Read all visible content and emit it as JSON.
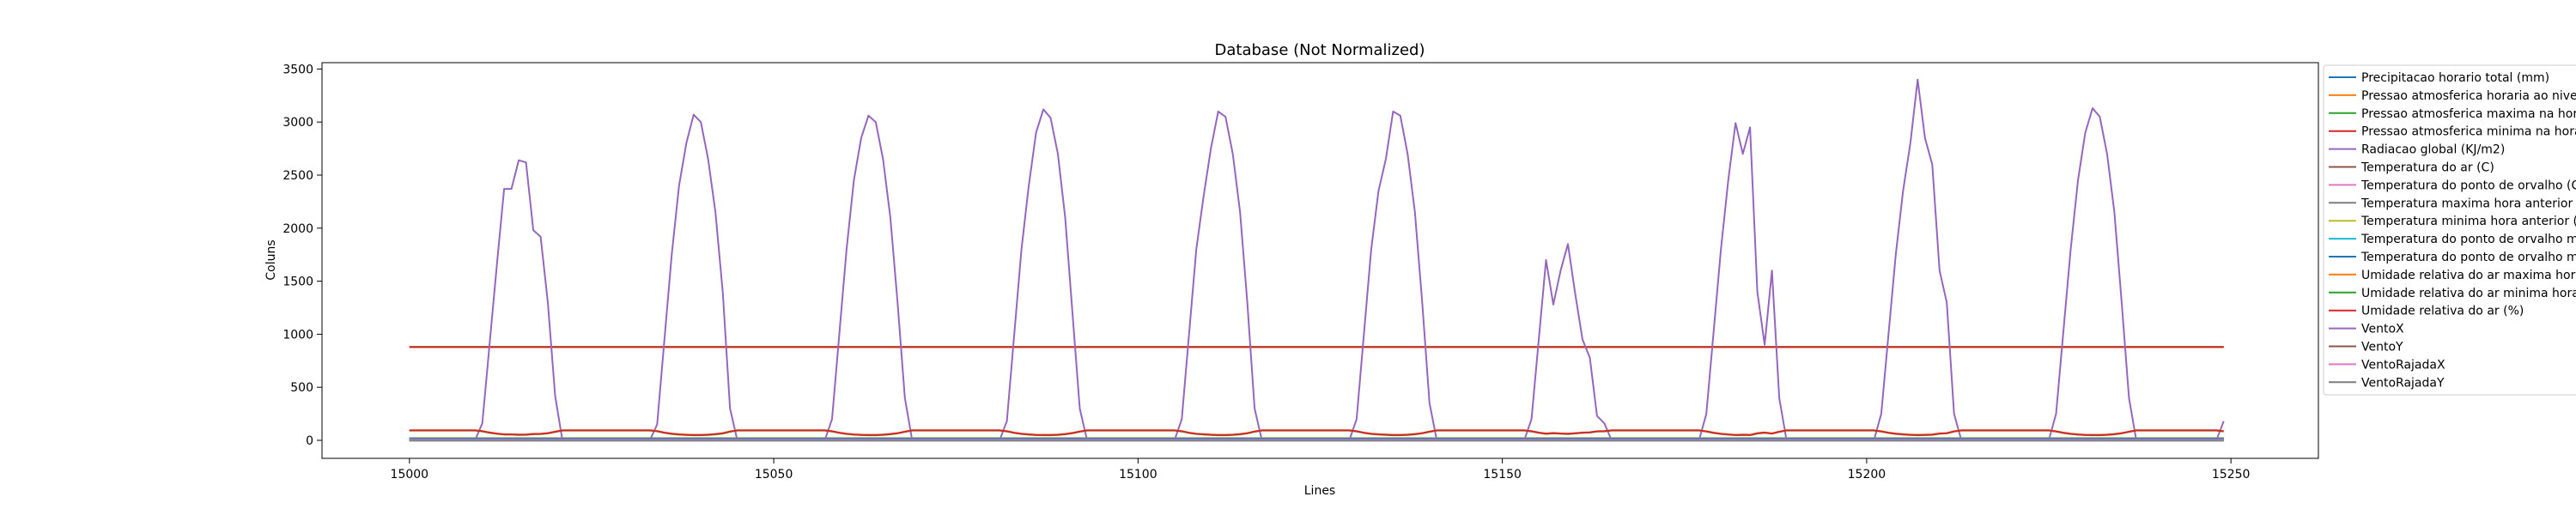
{
  "chart_data": {
    "type": "line",
    "title": "Database (Not Normalized)",
    "xlabel": "Lines",
    "ylabel": "Coluns",
    "xlim": [
      14988,
      15262
    ],
    "ylim": [
      -170,
      3560
    ],
    "xticks": [
      15000,
      15050,
      15100,
      15150,
      15200,
      15250
    ],
    "yticks": [
      0,
      500,
      1000,
      1500,
      2000,
      2500,
      3000,
      3500
    ],
    "grid": false,
    "legend_position": "right, outside plot",
    "x_start": 15000,
    "x_end": 15249,
    "series": [
      {
        "name": "Precipitacao horario total (mm)",
        "color": "#1f77b4",
        "kind": "const",
        "value": 0
      },
      {
        "name": "Pressao atmosferica horaria ao nivel da estacao (mB)",
        "color": "#ff7f0e",
        "kind": "const",
        "value": 880
      },
      {
        "name": "Pressao atmosferica maxima na hora anterior (mB)",
        "color": "#2ca02c",
        "kind": "const",
        "value": 881
      },
      {
        "name": "Pressao atmosferica minima na hora anterior (mB)",
        "color": "#d62728",
        "kind": "const",
        "value": 879
      },
      {
        "name": "Radiacao global (KJ/m2)",
        "color": "#9467bd",
        "kind": "points",
        "points": [
          [
            15000,
            0
          ],
          [
            15009,
            0
          ],
          [
            15010,
            160
          ],
          [
            15012,
            1650
          ],
          [
            15013,
            2370
          ],
          [
            15014,
            2370
          ],
          [
            15015,
            2640
          ],
          [
            15016,
            2620
          ],
          [
            15017,
            1980
          ],
          [
            15018,
            1920
          ],
          [
            15019,
            1300
          ],
          [
            15020,
            420
          ],
          [
            15021,
            0
          ],
          [
            15033,
            0
          ],
          [
            15034,
            150
          ],
          [
            15036,
            1750
          ],
          [
            15037,
            2400
          ],
          [
            15038,
            2800
          ],
          [
            15039,
            3070
          ],
          [
            15040,
            3000
          ],
          [
            15041,
            2650
          ],
          [
            15042,
            2150
          ],
          [
            15043,
            1400
          ],
          [
            15044,
            300
          ],
          [
            15045,
            0
          ],
          [
            15057,
            0
          ],
          [
            15058,
            200
          ],
          [
            15060,
            1800
          ],
          [
            15061,
            2450
          ],
          [
            15062,
            2850
          ],
          [
            15063,
            3060
          ],
          [
            15064,
            3000
          ],
          [
            15065,
            2650
          ],
          [
            15066,
            2100
          ],
          [
            15067,
            1300
          ],
          [
            15068,
            400
          ],
          [
            15069,
            0
          ],
          [
            15081,
            0
          ],
          [
            15082,
            180
          ],
          [
            15084,
            1800
          ],
          [
            15085,
            2400
          ],
          [
            15086,
            2900
          ],
          [
            15087,
            3120
          ],
          [
            15088,
            3040
          ],
          [
            15089,
            2700
          ],
          [
            15090,
            2100
          ],
          [
            15091,
            1200
          ],
          [
            15092,
            300
          ],
          [
            15093,
            0
          ],
          [
            15105,
            0
          ],
          [
            15106,
            200
          ],
          [
            15108,
            1800
          ],
          [
            15109,
            2300
          ],
          [
            15110,
            2750
          ],
          [
            15111,
            3100
          ],
          [
            15112,
            3050
          ],
          [
            15113,
            2700
          ],
          [
            15114,
            2150
          ],
          [
            15115,
            1300
          ],
          [
            15116,
            300
          ],
          [
            15117,
            0
          ],
          [
            15129,
            0
          ],
          [
            15130,
            200
          ],
          [
            15132,
            1800
          ],
          [
            15133,
            2350
          ],
          [
            15134,
            2650
          ],
          [
            15135,
            3100
          ],
          [
            15136,
            3060
          ],
          [
            15137,
            2700
          ],
          [
            15138,
            2150
          ],
          [
            15139,
            1300
          ],
          [
            15140,
            350
          ],
          [
            15141,
            0
          ],
          [
            15153,
            0
          ],
          [
            15154,
            200
          ],
          [
            15156,
            1700
          ],
          [
            15157,
            1280
          ],
          [
            15158,
            1600
          ],
          [
            15159,
            1850
          ],
          [
            15160,
            1380
          ],
          [
            15161,
            950
          ],
          [
            15162,
            780
          ],
          [
            15163,
            230
          ],
          [
            15164,
            160
          ],
          [
            15165,
            0
          ],
          [
            15177,
            0
          ],
          [
            15178,
            250
          ],
          [
            15180,
            1800
          ],
          [
            15181,
            2450
          ],
          [
            15182,
            2990
          ],
          [
            15183,
            2700
          ],
          [
            15184,
            2950
          ],
          [
            15185,
            1400
          ],
          [
            15186,
            900
          ],
          [
            15187,
            1600
          ],
          [
            15188,
            400
          ],
          [
            15189,
            0
          ],
          [
            15201,
            0
          ],
          [
            15202,
            250
          ],
          [
            15204,
            1750
          ],
          [
            15205,
            2350
          ],
          [
            15206,
            2800
          ],
          [
            15207,
            3400
          ],
          [
            15208,
            2850
          ],
          [
            15209,
            2600
          ],
          [
            15210,
            1600
          ],
          [
            15211,
            1300
          ],
          [
            15212,
            250
          ],
          [
            15213,
            0
          ],
          [
            15225,
            0
          ],
          [
            15226,
            250
          ],
          [
            15228,
            1800
          ],
          [
            15229,
            2450
          ],
          [
            15230,
            2900
          ],
          [
            15231,
            3130
          ],
          [
            15232,
            3050
          ],
          [
            15233,
            2700
          ],
          [
            15234,
            2150
          ],
          [
            15235,
            1300
          ],
          [
            15236,
            400
          ],
          [
            15237,
            0
          ],
          [
            15248,
            0
          ],
          [
            15249,
            180
          ]
        ]
      },
      {
        "name": "Temperatura do ar (C)",
        "color": "#8c564b",
        "kind": "const",
        "value": 20
      },
      {
        "name": "Temperatura do ponto de orvalho (C)",
        "color": "#e377c2",
        "kind": "const",
        "value": 15
      },
      {
        "name": "Temperatura maxima hora anterior (C)",
        "color": "#7f7f7f",
        "kind": "const",
        "value": 21
      },
      {
        "name": "Temperatura minima hora anterior (C)",
        "color": "#bcbd22",
        "kind": "const",
        "value": 19
      },
      {
        "name": "Temperatura do ponto de orvalho maxima (C)",
        "color": "#17becf",
        "kind": "const",
        "value": 16
      },
      {
        "name": "Temperatura do ponto de orvalho minima (C)",
        "color": "#1f77b4",
        "kind": "const",
        "value": 14
      },
      {
        "name": "Umidade relativa do ar maxima hora anterior (%)",
        "color": "#ff7f0e",
        "kind": "humidity",
        "base": 95,
        "dip": 52
      },
      {
        "name": "Umidade relativa do ar minima hora anterior (%)",
        "color": "#2ca02c",
        "kind": "humidity",
        "base": 92,
        "dip": 48
      },
      {
        "name": "Umidade relativa do ar (%)",
        "color": "#d62728",
        "kind": "humidity",
        "base": 94,
        "dip": 50
      },
      {
        "name": "VentoX",
        "color": "#9467bd",
        "kind": "const",
        "value": 2
      },
      {
        "name": "VentoY",
        "color": "#8c564b",
        "kind": "const",
        "value": -1
      },
      {
        "name": "VentoRajadaX",
        "color": "#e377c2",
        "kind": "const",
        "value": 5
      },
      {
        "name": "VentoRajadaY",
        "color": "#7f7f7f",
        "kind": "const",
        "value": -3
      }
    ],
    "legend_labels": [
      "Precipitacao horario total (mm)",
      "Pressao atmosferica horaria ao nive",
      "Pressao atmosferica maxima na hor",
      "Pressao atmosferica minima na hora",
      "Radiacao global (KJ/m2)",
      "Temperatura do ar (C)",
      "Temperatura do ponto de orvalho (C",
      "Temperatura maxima hora anterior",
      "Temperatura minima hora anterior (",
      "Temperatura do ponto de orvalho m",
      "Temperatura do ponto de orvalho m",
      "Umidade relativa do ar maxima hor",
      "Umidade relativa do ar minima hora",
      "Umidade relativa do ar (%)",
      "VentoX",
      "VentoY",
      "VentoRajadaX",
      "VentoRajadaY"
    ]
  }
}
